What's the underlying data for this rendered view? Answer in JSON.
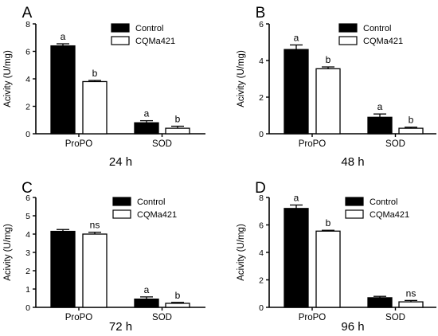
{
  "chart_data": [
    {
      "type": "bar",
      "panel": "A",
      "time_label": "24 h",
      "ylabel": "Acivity (U/mg)",
      "categories": [
        "ProPO",
        "SOD"
      ],
      "ylim": [
        0,
        8
      ],
      "yticks": [
        "0",
        "2",
        "4",
        "6",
        "8"
      ],
      "series": [
        {
          "name": "Control",
          "color": "#000000",
          "values": [
            6.4,
            0.8
          ],
          "errors": [
            0.15,
            0.15
          ]
        },
        {
          "name": "CQMa421",
          "color": "#ffffff",
          "values": [
            3.8,
            0.4
          ],
          "errors": [
            0.08,
            0.15
          ]
        }
      ],
      "annotations": [
        [
          "a",
          "a"
        ],
        [
          "b",
          "b"
        ]
      ],
      "legend": "top-right"
    },
    {
      "type": "bar",
      "panel": "B",
      "time_label": "48 h",
      "ylabel": "Acivity (U/mg)",
      "categories": [
        "ProPO",
        "SOD"
      ],
      "ylim": [
        0,
        6
      ],
      "yticks": [
        "0",
        "2",
        "4",
        "6"
      ],
      "series": [
        {
          "name": "Control",
          "color": "#000000",
          "values": [
            4.6,
            0.9
          ],
          "errors": [
            0.25,
            0.18
          ]
        },
        {
          "name": "CQMa421",
          "color": "#ffffff",
          "values": [
            3.55,
            0.3
          ],
          "errors": [
            0.1,
            0.06
          ]
        }
      ],
      "annotations": [
        [
          "a",
          "a"
        ],
        [
          "b",
          "b"
        ]
      ],
      "legend": "top-right"
    },
    {
      "type": "bar",
      "panel": "C",
      "time_label": "72 h",
      "ylabel": "Acivity (U/mg)",
      "categories": [
        "ProPO",
        "SOD"
      ],
      "ylim": [
        0,
        6
      ],
      "yticks": [
        "0",
        "1",
        "2",
        "3",
        "4",
        "5",
        "6"
      ],
      "series": [
        {
          "name": "Control",
          "color": "#000000",
          "values": [
            4.15,
            0.45
          ],
          "errors": [
            0.1,
            0.12
          ]
        },
        {
          "name": "CQMa421",
          "color": "#ffffff",
          "values": [
            4.0,
            0.22
          ],
          "errors": [
            0.1,
            0.05
          ]
        }
      ],
      "annotations": [
        [
          "",
          "a"
        ],
        [
          "ns",
          "b"
        ]
      ],
      "legend": "top-right"
    },
    {
      "type": "bar",
      "panel": "D",
      "time_label": "96 h",
      "ylabel": "Acivity (U/mg)",
      "categories": [
        "ProPO",
        "SOD"
      ],
      "ylim": [
        0,
        8
      ],
      "yticks": [
        "0",
        "2",
        "4",
        "6",
        "8"
      ],
      "series": [
        {
          "name": "Control",
          "color": "#000000",
          "values": [
            7.2,
            0.7
          ],
          "errors": [
            0.25,
            0.1
          ]
        },
        {
          "name": "CQMa421",
          "color": "#ffffff",
          "values": [
            5.55,
            0.4
          ],
          "errors": [
            0.06,
            0.1
          ]
        }
      ],
      "annotations": [
        [
          "a",
          ""
        ],
        [
          "b",
          "ns"
        ]
      ],
      "legend": "top-right"
    }
  ]
}
